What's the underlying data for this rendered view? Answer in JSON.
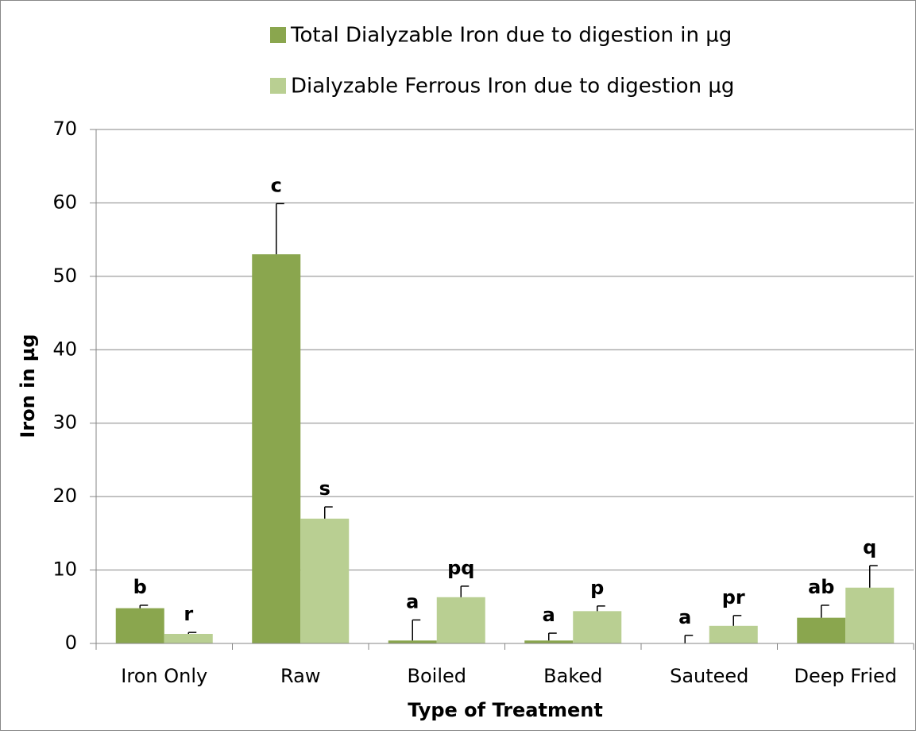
{
  "chart_data": {
    "type": "bar",
    "xlabel": "Type of Treatment",
    "ylabel": "Iron in µg",
    "categories": [
      "Iron Only",
      "Raw",
      "Boiled",
      "Baked",
      "Sauteed",
      "Deep Fried"
    ],
    "series": [
      {
        "name": "Total Dialyzable Iron due to digestion in µg",
        "color": "#8aa64e",
        "values": [
          4.8,
          53,
          0.4,
          0.4,
          0,
          3.5
        ],
        "errors": [
          0.4,
          6.9,
          2.8,
          1.0,
          1.1,
          1.7
        ],
        "labels": [
          "b",
          "c",
          "a",
          "a",
          "a",
          "ab"
        ]
      },
      {
        "name": "Dialyzable Ferrous Iron due to digestion µg",
        "color": "#b9cf92",
        "values": [
          1.3,
          17,
          6.3,
          4.4,
          2.4,
          7.6
        ],
        "errors": [
          0.2,
          1.6,
          1.5,
          0.7,
          1.4,
          3.0
        ],
        "labels": [
          "r",
          "s",
          "pq",
          "p",
          "pr",
          "q"
        ]
      }
    ],
    "ylim": [
      0,
      70
    ],
    "yticks": [
      0,
      10,
      20,
      30,
      40,
      50,
      60,
      70
    ],
    "grid": true,
    "legend": "top"
  }
}
